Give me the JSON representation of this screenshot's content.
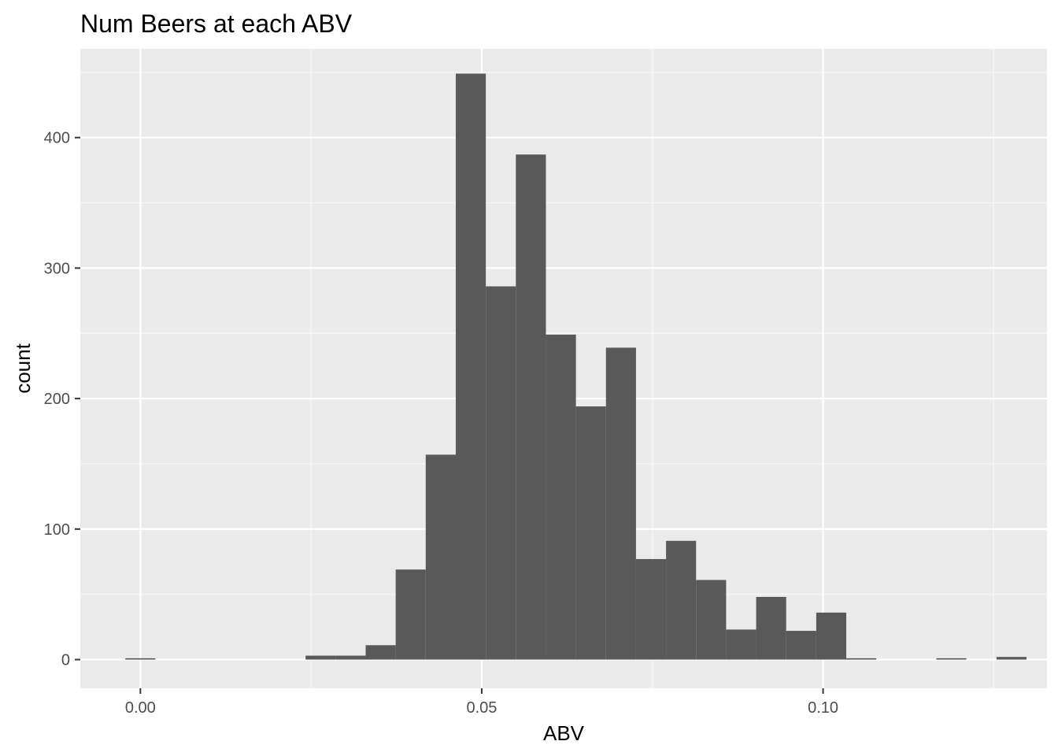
{
  "chart_data": {
    "type": "bar",
    "title": "Num Beers at each ABV",
    "xlabel": "ABV",
    "ylabel": "count",
    "xlim": [
      -0.0088,
      0.1328
    ],
    "ylim": [
      -22,
      468
    ],
    "x_ticks": [
      0.0,
      0.05,
      0.1
    ],
    "x_tick_labels": [
      "0.00",
      "0.05",
      "0.10"
    ],
    "y_ticks": [
      0,
      100,
      200,
      300,
      400
    ],
    "y_tick_labels": [
      "0",
      "100",
      "200",
      "300",
      "400"
    ],
    "bin_width": 0.0044,
    "bins": [
      {
        "x": 0.0,
        "count": 1
      },
      {
        "x": 0.0044,
        "count": 0
      },
      {
        "x": 0.0088,
        "count": 0
      },
      {
        "x": 0.0132,
        "count": 0
      },
      {
        "x": 0.0176,
        "count": 0
      },
      {
        "x": 0.022,
        "count": 0
      },
      {
        "x": 0.0264,
        "count": 3
      },
      {
        "x": 0.0308,
        "count": 3
      },
      {
        "x": 0.0352,
        "count": 11
      },
      {
        "x": 0.0396,
        "count": 69
      },
      {
        "x": 0.044,
        "count": 157
      },
      {
        "x": 0.0484,
        "count": 449
      },
      {
        "x": 0.0528,
        "count": 286
      },
      {
        "x": 0.0572,
        "count": 387
      },
      {
        "x": 0.0616,
        "count": 249
      },
      {
        "x": 0.066,
        "count": 194
      },
      {
        "x": 0.0704,
        "count": 239
      },
      {
        "x": 0.0748,
        "count": 77
      },
      {
        "x": 0.0792,
        "count": 91
      },
      {
        "x": 0.0836,
        "count": 61
      },
      {
        "x": 0.088,
        "count": 23
      },
      {
        "x": 0.0924,
        "count": 48
      },
      {
        "x": 0.0968,
        "count": 22
      },
      {
        "x": 0.1012,
        "count": 36
      },
      {
        "x": 0.1056,
        "count": 1
      },
      {
        "x": 0.11,
        "count": 0
      },
      {
        "x": 0.1144,
        "count": 0
      },
      {
        "x": 0.1188,
        "count": 1
      },
      {
        "x": 0.1232,
        "count": 0
      },
      {
        "x": 0.1276,
        "count": 2
      }
    ],
    "grid": true,
    "colors": {
      "panel_background": "#ebebeb",
      "grid_major": "#ffffff",
      "grid_minor": "#f7f7f7",
      "bar_fill": "#595959",
      "tick_label": "#4d4d4d",
      "tick_mark": "#333333"
    }
  }
}
